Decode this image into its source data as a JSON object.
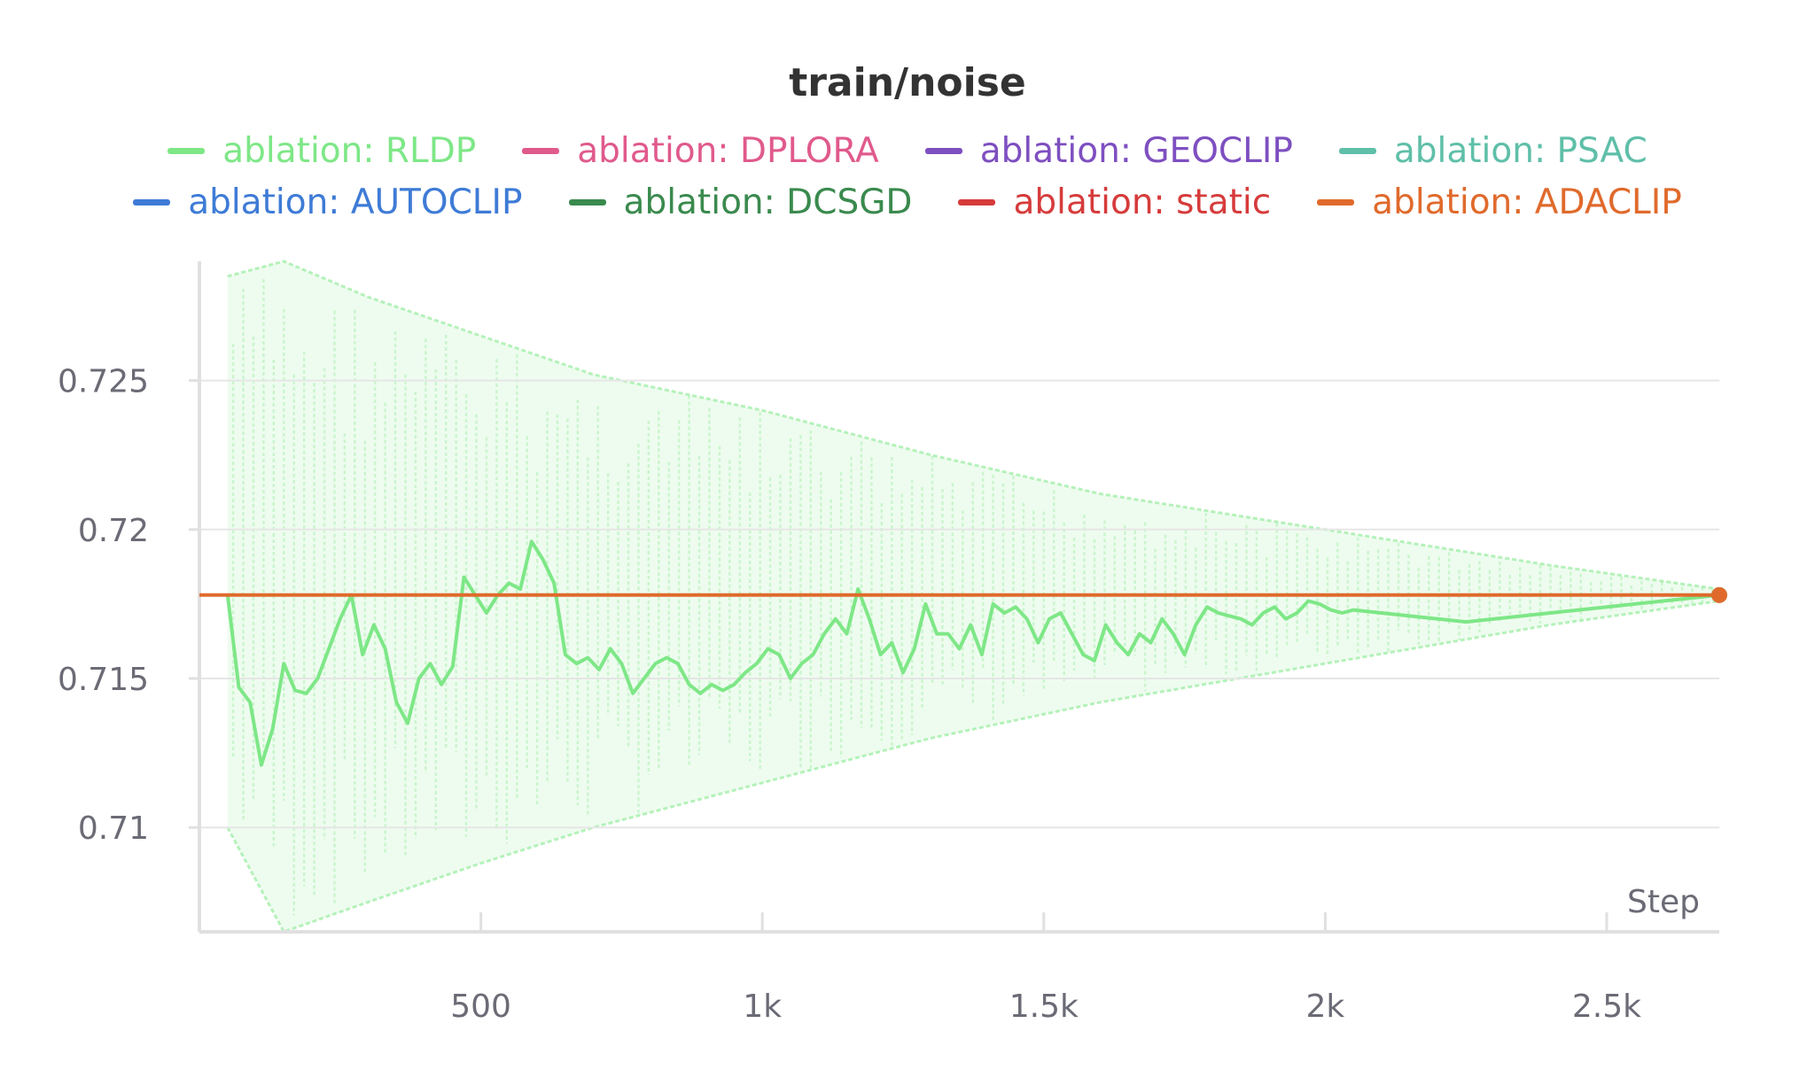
{
  "chart_data": {
    "type": "line",
    "title": "train/noise",
    "xlabel": "Step",
    "ylabel": "",
    "xlim": [
      0,
      2700
    ],
    "ylim": [
      0.7065,
      0.729
    ],
    "x_ticks": [
      500,
      1000,
      1500,
      2000,
      2500
    ],
    "x_tick_labels": [
      "500",
      "1k",
      "1.5k",
      "2k",
      "2.5k"
    ],
    "y_ticks": [
      0.71,
      0.715,
      0.72,
      0.725
    ],
    "y_tick_labels": [
      "0.71",
      "0.715",
      "0.72",
      "0.725"
    ],
    "grid": true,
    "legend_position": "top-center",
    "legend": [
      {
        "label": "ablation: RLDP",
        "color": "#7ee787"
      },
      {
        "label": "ablation: DPLORA",
        "color": "#e05a8c"
      },
      {
        "label": "ablation: GEOCLIP",
        "color": "#7e4fc0"
      },
      {
        "label": "ablation: PSAC",
        "color": "#5fbfa8"
      },
      {
        "label": "ablation: AUTOCLIP",
        "color": "#3e7bd6"
      },
      {
        "label": "ablation: DCSGD",
        "color": "#3a8a4e"
      },
      {
        "label": "ablation: static",
        "color": "#d63b3b"
      },
      {
        "label": "ablation: ADACLIP",
        "color": "#e06a2c"
      }
    ],
    "series": [
      {
        "name": "ablation: RLDP",
        "color": "#7ee787",
        "x": [
          50,
          70,
          90,
          110,
          130,
          150,
          170,
          190,
          210,
          230,
          250,
          270,
          290,
          310,
          330,
          350,
          370,
          390,
          410,
          430,
          450,
          470,
          490,
          510,
          530,
          550,
          570,
          590,
          610,
          630,
          650,
          670,
          690,
          710,
          730,
          750,
          770,
          790,
          810,
          830,
          850,
          870,
          890,
          910,
          930,
          950,
          970,
          990,
          1010,
          1030,
          1050,
          1070,
          1090,
          1110,
          1130,
          1150,
          1170,
          1190,
          1210,
          1230,
          1250,
          1270,
          1290,
          1310,
          1330,
          1350,
          1370,
          1390,
          1410,
          1430,
          1450,
          1470,
          1490,
          1510,
          1530,
          1550,
          1570,
          1590,
          1610,
          1630,
          1650,
          1670,
          1690,
          1710,
          1730,
          1750,
          1770,
          1790,
          1810,
          1830,
          1850,
          1870,
          1890,
          1910,
          1930,
          1950,
          1970,
          1990,
          2010,
          2030,
          2050,
          2100,
          2150,
          2200,
          2250,
          2300,
          2350,
          2400,
          2450,
          2500,
          2550,
          2600,
          2650,
          2700
        ],
        "y": [
          0.7178,
          0.7147,
          0.7142,
          0.7121,
          0.7133,
          0.7155,
          0.7146,
          0.7145,
          0.715,
          0.716,
          0.717,
          0.7178,
          0.7158,
          0.7168,
          0.716,
          0.7142,
          0.7135,
          0.715,
          0.7155,
          0.7148,
          0.7154,
          0.7184,
          0.7178,
          0.7172,
          0.7178,
          0.7182,
          0.718,
          0.7196,
          0.719,
          0.7182,
          0.7158,
          0.7155,
          0.7157,
          0.7153,
          0.716,
          0.7155,
          0.7145,
          0.715,
          0.7155,
          0.7157,
          0.7155,
          0.7148,
          0.7145,
          0.7148,
          0.7146,
          0.7148,
          0.7152,
          0.7155,
          0.716,
          0.7158,
          0.715,
          0.7155,
          0.7158,
          0.7165,
          0.717,
          0.7165,
          0.718,
          0.717,
          0.7158,
          0.7162,
          0.7152,
          0.716,
          0.7175,
          0.7165,
          0.7165,
          0.716,
          0.7168,
          0.7158,
          0.7175,
          0.7172,
          0.7174,
          0.717,
          0.7162,
          0.717,
          0.7172,
          0.7165,
          0.7158,
          0.7156,
          0.7168,
          0.7162,
          0.7158,
          0.7165,
          0.7162,
          0.717,
          0.7165,
          0.7158,
          0.7168,
          0.7174,
          0.7172,
          0.7171,
          0.717,
          0.7168,
          0.7172,
          0.7174,
          0.717,
          0.7172,
          0.7176,
          0.7175,
          0.7173,
          0.7172,
          0.7173,
          0.7172,
          0.7171,
          0.717,
          0.7169,
          0.717,
          0.7171,
          0.7172,
          0.7173,
          0.7174,
          0.7175,
          0.7176,
          0.7177,
          0.7178
        ]
      },
      {
        "name": "ablation: ADACLIP",
        "color": "#e06a2c",
        "x": [
          0,
          2700
        ],
        "y": [
          0.7178,
          0.7178
        ]
      }
    ],
    "band": {
      "name": "ablation: RLDP runs range",
      "x": [
        50,
        150,
        300,
        500,
        700,
        1000,
        1300,
        1600,
        2000,
        2400,
        2700
      ],
      "upper": [
        0.7285,
        0.729,
        0.7278,
        0.7265,
        0.7252,
        0.724,
        0.7225,
        0.7212,
        0.72,
        0.7188,
        0.718
      ],
      "lower": [
        0.71,
        0.7065,
        0.7075,
        0.7088,
        0.71,
        0.7115,
        0.713,
        0.7142,
        0.7155,
        0.7168,
        0.7176
      ]
    }
  }
}
